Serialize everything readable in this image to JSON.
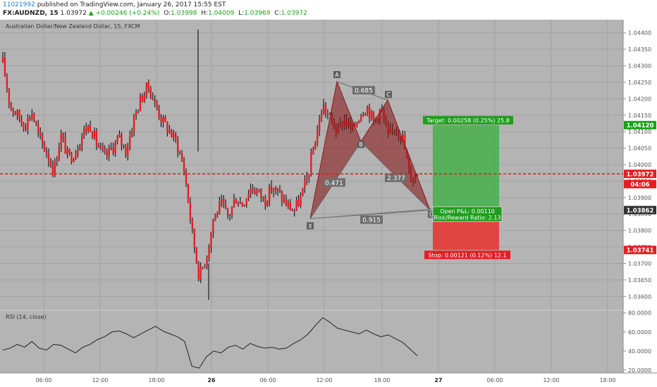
{
  "publish_line": {
    "user": "11021992",
    "text": "published on TradingView.com, January 26, 2017 15:55 EST"
  },
  "ticker_line": {
    "symbol": "FX:AUDNZD, 15",
    "last": "1.03972",
    "change": "+0.00246 (+0.24%)",
    "open_label": "O:",
    "open": "1.03998",
    "high_label": "H:",
    "high": "1.04009",
    "low_label": "L:",
    "low": "1.03969",
    "close_label": "C:",
    "close": "1.03972"
  },
  "chart_title": "Australian Dollar/New Zealand Dollar, 15, FXCM",
  "price_axis": {
    "min": 1.0356,
    "max": 1.0444,
    "ticks": [
      "1.04400",
      "1.04350",
      "1.04300",
      "1.04250",
      "1.04200",
      "1.04150",
      "1.04100",
      "1.04050",
      "1.04000",
      "1.03950",
      "1.03900",
      "1.03850",
      "1.03800",
      "1.03750",
      "1.03700",
      "1.03650",
      "1.03600"
    ],
    "tick_values": [
      1.044,
      1.0435,
      1.043,
      1.0425,
      1.042,
      1.0415,
      1.041,
      1.0405,
      1.04,
      1.0395,
      1.039,
      1.0385,
      1.038,
      1.0375,
      1.037,
      1.0365,
      1.036
    ],
    "labels": [
      {
        "text": "1.04120",
        "value": 1.0412,
        "color": "#1aa31a"
      },
      {
        "text": "1.03972",
        "value": 1.03972,
        "color": "#e31e24"
      },
      {
        "text": "04:06",
        "value": 1.03941,
        "color": "#e31e24"
      },
      {
        "text": "1.03862",
        "value": 1.03862,
        "color": "#333333"
      },
      {
        "text": "1.03741",
        "value": 1.03741,
        "color": "#e31e24"
      }
    ]
  },
  "time_axis": {
    "labels": [
      {
        "text": "06:00",
        "bold": false
      },
      {
        "text": "12:00",
        "bold": false
      },
      {
        "text": "18:00",
        "bold": false
      },
      {
        "text": "26",
        "bold": true
      },
      {
        "text": "06:00",
        "bold": false
      },
      {
        "text": "12:00",
        "bold": false
      },
      {
        "text": "18:00",
        "bold": false
      },
      {
        "text": "27",
        "bold": true
      },
      {
        "text": "06:00",
        "bold": false
      },
      {
        "text": "12:00",
        "bold": false
      },
      {
        "text": "18:00",
        "bold": false
      }
    ]
  },
  "pattern": {
    "points": [
      "X",
      "A",
      "B",
      "C",
      "D"
    ],
    "ratios": [
      "0.685",
      "0.471",
      "2.377",
      "0.915"
    ],
    "color": "#8b1a1a"
  },
  "position": {
    "target": "Target: 0.00258 (0.25%) 25.8",
    "stop": "Stop: 0.00121 (0.12%) 12.1",
    "pnl": "Open P&L: 0.00110",
    "rr": "Risk/Reward Ratio: 2.13",
    "target_color": "#4caf50",
    "stop_color": "#e53935"
  },
  "rsi": {
    "title": "RSI (14, close)",
    "ticks": [
      "80.0000",
      "60.0000",
      "40.0000",
      "20.0000"
    ],
    "tick_values": [
      80,
      60,
      40,
      20
    ],
    "min": 17,
    "max": 82
  },
  "colors": {
    "chart_bg": "#b4b4b4",
    "candle": "#e31e24",
    "wick": "#000000",
    "accent": "#1c7acb"
  },
  "chart_data": {
    "type": "line",
    "title": "Australian Dollar/New Zealand Dollar, 15, FXCM",
    "ylim": [
      1.0356,
      1.0444
    ],
    "series": [
      {
        "name": "FX:AUDNZD, 15",
        "values": [
          1.0431,
          1.0418,
          1.0415,
          1.0412,
          1.0416,
          1.0408,
          1.0404,
          1.0398,
          1.0409,
          1.0402,
          1.0404,
          1.041,
          1.0412,
          1.0406,
          1.0402,
          1.0405,
          1.0408,
          1.0404,
          1.0414,
          1.042,
          1.0424,
          1.0418,
          1.0413,
          1.041,
          1.0406,
          1.0398,
          1.038,
          1.0366,
          1.0372,
          1.0384,
          1.0388,
          1.0384,
          1.039,
          1.0388,
          1.0393,
          1.0392,
          1.0389,
          1.0393,
          1.0391,
          1.0388,
          1.0386,
          1.039,
          1.0397,
          1.0408,
          1.0418,
          1.0414,
          1.041,
          1.0414,
          1.041,
          1.0415,
          1.0418,
          1.0413,
          1.0417,
          1.0408,
          1.0412,
          1.0408,
          1.0396,
          1.03972
        ]
      },
      {
        "name": "RSI (14, close)",
        "values": [
          41,
          43,
          47,
          44,
          50,
          43,
          41,
          47,
          46,
          42,
          38,
          44,
          47,
          52,
          55,
          60,
          61,
          58,
          54,
          58,
          62,
          66,
          61,
          58,
          55,
          50,
          24,
          22,
          34,
          40,
          38,
          44,
          46,
          42,
          48,
          45,
          43,
          44,
          42,
          43,
          48,
          52,
          58,
          67,
          75,
          70,
          64,
          62,
          60,
          58,
          62,
          58,
          55,
          57,
          53,
          49,
          42,
          35
        ]
      }
    ]
  }
}
